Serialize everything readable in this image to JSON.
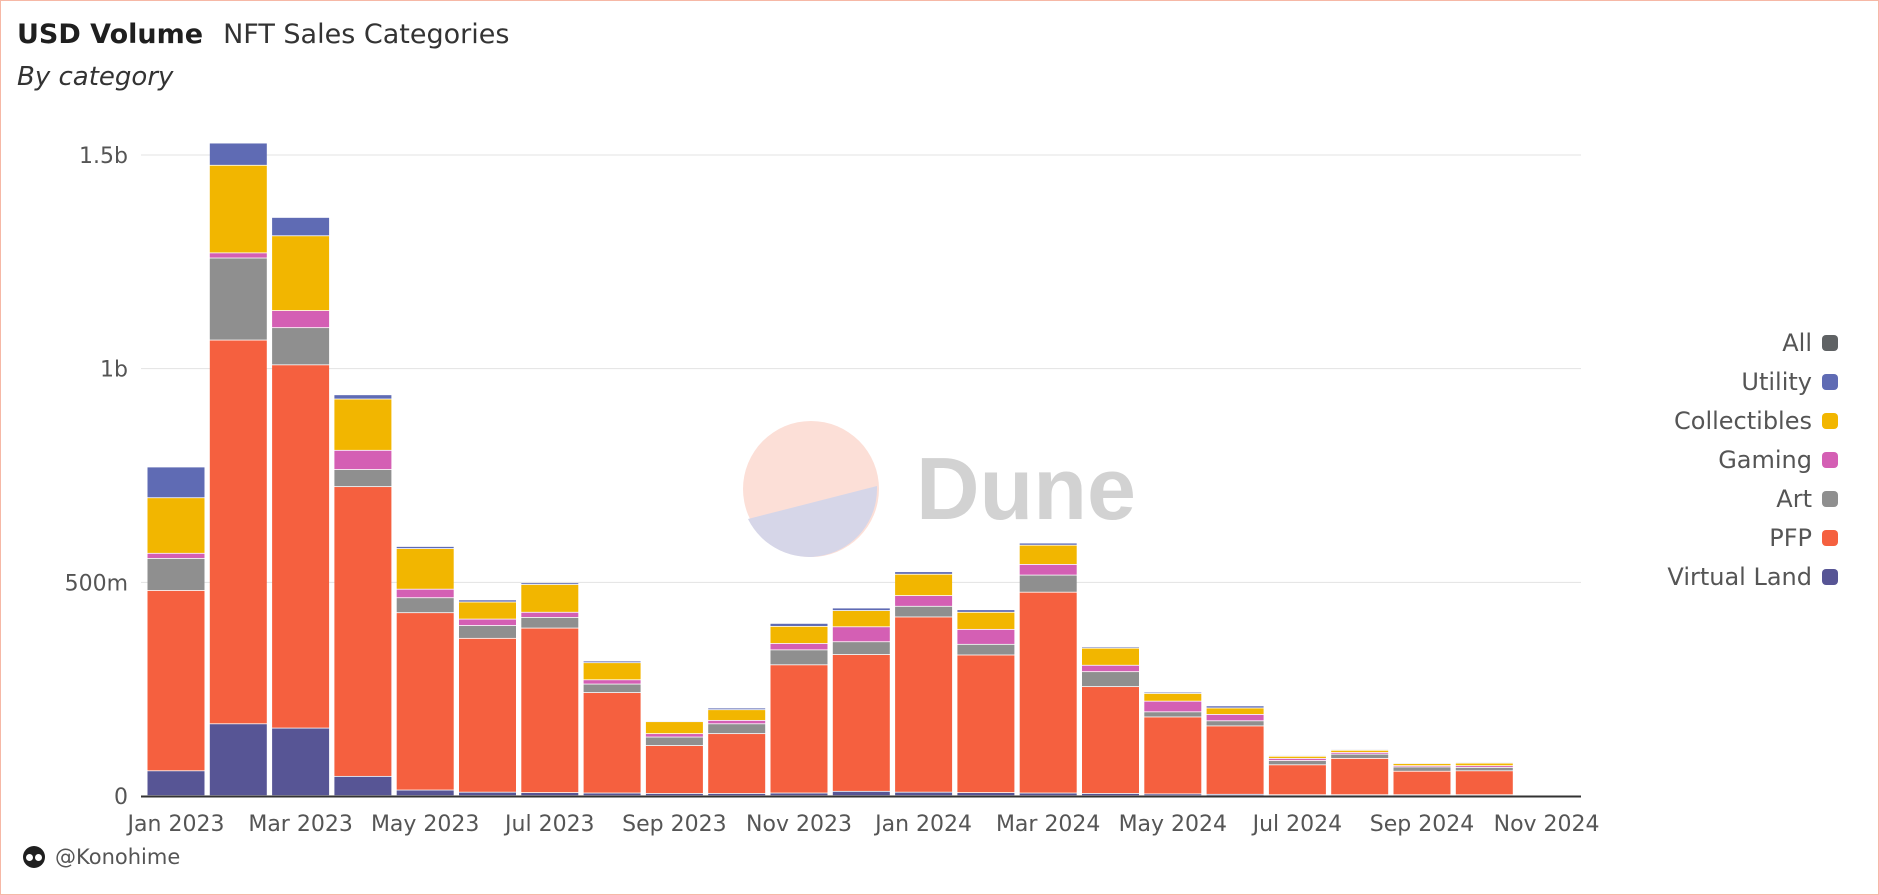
{
  "header": {
    "title": "USD Volume",
    "query_name": "NFT Sales Categories",
    "subtitle": "By category"
  },
  "watermark": {
    "text": "Dune"
  },
  "footer": {
    "author": "@Konohime"
  },
  "colors": {
    "All": "#5f6264",
    "Utility": "#5f6bb4",
    "Collectibles": "#f2b600",
    "Gaming": "#d45fb4",
    "Art": "#8f8f8f",
    "PFP": "#f5603f",
    "Virtual Land": "#575595"
  },
  "chart_data": {
    "type": "bar",
    "stacked": true,
    "categories": [
      "Jan 2023",
      "Feb 2023",
      "Mar 2023",
      "Apr 2023",
      "May 2023",
      "Jun 2023",
      "Jul 2023",
      "Aug 2023",
      "Sep 2023",
      "Oct 2023",
      "Nov 2023",
      "Dec 2023",
      "Jan 2024",
      "Feb 2024",
      "Mar 2024",
      "Apr 2024",
      "May 2024",
      "Jun 2024",
      "Jul 2024",
      "Aug 2024",
      "Sep 2024",
      "Oct 2024",
      "Nov 2024"
    ],
    "x_tick_labels": [
      "Jan 2023",
      "Mar 2023",
      "May 2023",
      "Jul 2023",
      "Sep 2023",
      "Nov 2023",
      "Jan 2024",
      "Mar 2024",
      "May 2024",
      "Jul 2024",
      "Sep 2024",
      "Nov 2024"
    ],
    "y_ticks": [
      {
        "value": 0,
        "label": "0"
      },
      {
        "value": 500,
        "label": "500m"
      },
      {
        "value": 1000,
        "label": "1b"
      },
      {
        "value": 1500,
        "label": "1.5b"
      }
    ],
    "ylim": [
      0,
      1500
    ],
    "grid": true,
    "legend_position": "right",
    "legend": [
      "All",
      "Utility",
      "Collectibles",
      "Gaming",
      "Art",
      "PFP",
      "Virtual Land"
    ],
    "series": [
      {
        "name": "Virtual Land",
        "values": [
          58,
          168,
          158,
          45,
          13,
          8,
          7,
          6,
          5,
          5,
          6,
          10,
          8,
          7,
          6,
          5,
          4,
          3,
          2,
          2,
          2,
          2,
          1
        ]
      },
      {
        "name": "PFP",
        "values": [
          422,
          898,
          850,
          678,
          415,
          360,
          385,
          235,
          112,
          140,
          300,
          320,
          410,
          322,
          470,
          250,
          180,
          160,
          70,
          85,
          55,
          56,
          1
        ]
      },
      {
        "name": "Art",
        "values": [
          75,
          192,
          87,
          40,
          35,
          30,
          25,
          20,
          20,
          23,
          35,
          30,
          25,
          25,
          40,
          35,
          12,
          12,
          10,
          10,
          10,
          8,
          1
        ]
      },
      {
        "name": "Gaming",
        "values": [
          12,
          12,
          40,
          45,
          20,
          15,
          12,
          10,
          8,
          8,
          15,
          35,
          25,
          35,
          25,
          15,
          25,
          15,
          5,
          4,
          3,
          4,
          0
        ]
      },
      {
        "name": "Collectibles",
        "values": [
          130,
          205,
          175,
          120,
          95,
          40,
          65,
          40,
          28,
          25,
          40,
          38,
          50,
          40,
          45,
          40,
          18,
          15,
          5,
          5,
          5,
          6,
          0
        ]
      },
      {
        "name": "Utility",
        "values": [
          72,
          52,
          43,
          10,
          5,
          5,
          4,
          4,
          2,
          4,
          7,
          6,
          6,
          6,
          5,
          3,
          3,
          5,
          2,
          2,
          2,
          2,
          0
        ]
      }
    ]
  }
}
